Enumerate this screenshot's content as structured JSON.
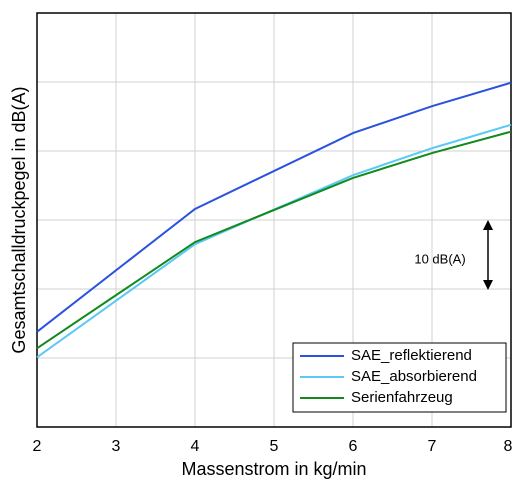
{
  "chart_data": {
    "type": "line",
    "xlabel": "Massenstrom in kg/min",
    "ylabel": "Gesamtschalldruckpegel in dB(A)",
    "annotation": "10 dB(A)",
    "x": [
      2,
      4,
      6,
      7,
      8
    ],
    "series": [
      {
        "name": "SAE_reflektierend",
        "color": "#2a52e0",
        "values": [
          13.8,
          31.6,
          42.6,
          46.5,
          49.9
        ]
      },
      {
        "name": "SAE_absorbierend",
        "color": "#5bc8f5",
        "values": [
          10.1,
          26.5,
          36.5,
          40.4,
          43.8
        ]
      },
      {
        "name": "Serienfahrzeug",
        "color": "#118a1e",
        "values": [
          11.4,
          26.8,
          36.1,
          39.7,
          42.8
        ]
      }
    ],
    "xlim": [
      2,
      8
    ],
    "xticks": [
      2,
      3,
      4,
      5,
      6,
      7,
      8
    ],
    "ylim": [
      0,
      60
    ],
    "yticks": [
      10,
      20,
      30,
      40,
      50
    ],
    "grid": true,
    "legend": "lower right"
  }
}
